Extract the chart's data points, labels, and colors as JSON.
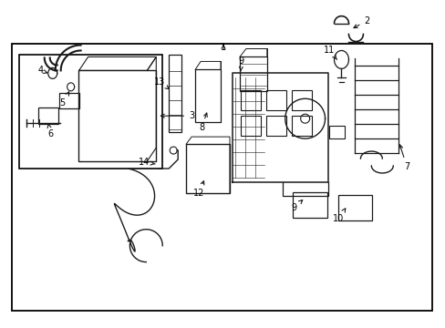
{
  "background_color": "#ffffff",
  "border_color": "#000000",
  "line_color": "#1a1a1a",
  "fig_width": 4.89,
  "fig_height": 3.6,
  "dpi": 100
}
